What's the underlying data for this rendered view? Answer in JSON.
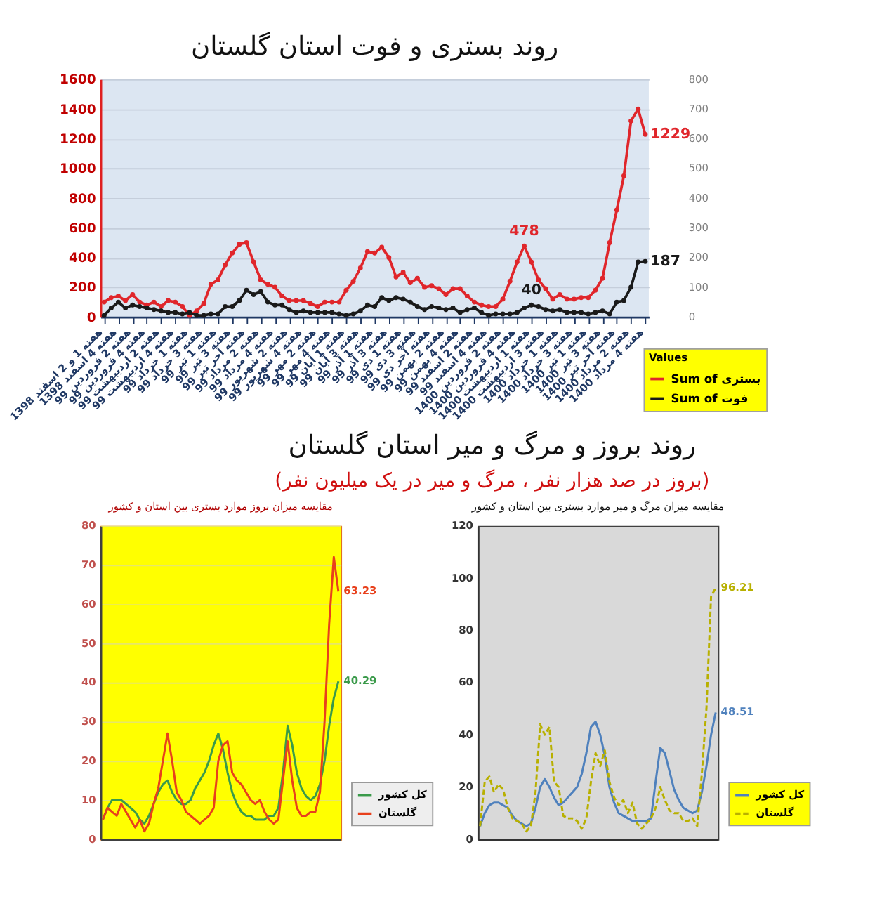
{
  "chart_data": [
    {
      "type": "line",
      "title": "روند بستری و فوت استان گلستان",
      "categories": [
        "هفته 1 و 2 اسفند 1398",
        null,
        "هفته 4 اسفند 1398",
        null,
        "هفته 2 فروردین 99",
        null,
        "هفته 4 فروردین 99",
        null,
        "هفته 2 اردیبهشت 99",
        null,
        "هفته 4 اردیبهشت 99",
        null,
        "هفته 1 خرداد 99",
        null,
        "هفته 3 خرداد 99",
        null,
        "هفته 1 تیر 99",
        null,
        "هفته 3 تیر 99",
        null,
        "هفته آخر تیر 99",
        null,
        "هفته 2 مرداد 99",
        null,
        "هفته 4 مرداد 99",
        null,
        "هفته 2 شهریور 99",
        null,
        "هفته 4 شهریور 99",
        null,
        "هفته 2 مهر 99",
        null,
        "هفته 4 مهر 99",
        null,
        "هفته 1 آبان 99",
        null,
        "هفته 3 آبان 99",
        null,
        "هفته 1 آذر 99",
        null,
        "هفته 3 آذر 99",
        null,
        "هفته 1 دی 99",
        null,
        "هفته 3 دی 99",
        null,
        "هفته آخر دی 99",
        null,
        "هفته 2 بهمن 99",
        null,
        "هفته 4 بهمن 99",
        null,
        "هفته 2 اسفند 99",
        null,
        "هفته 4 اسفند 99",
        null,
        "هفته 2 فروردین 1400",
        null,
        "هفته 4 فروردین 1400",
        null,
        "هفته 1 اردیبهشت 1400",
        null,
        "هفته 3 اردیبهشت 1400",
        null,
        "هفته 1 خرداد 1400",
        null,
        "هفته 3 خرداد 1400",
        null,
        "هفته 1 تیر 1400",
        null,
        "هفته 3 تیر 1400",
        null,
        "هفته آخر تیر 1400",
        null,
        "هفته 2 مرداد 1400",
        null,
        "هفته 4 مرداد 1400"
      ],
      "series": [
        {
          "name": "Sum of بستری",
          "color": "#e0262b",
          "values": [
            100,
            130,
            140,
            110,
            150,
            100,
            80,
            100,
            70,
            110,
            100,
            70,
            10,
            40,
            90,
            220,
            250,
            350,
            430,
            490,
            500,
            370,
            250,
            220,
            200,
            140,
            110,
            110,
            110,
            90,
            70,
            100,
            100,
            100,
            180,
            240,
            330,
            440,
            430,
            470,
            400,
            270,
            300,
            230,
            260,
            200,
            210,
            190,
            150,
            190,
            190,
            140,
            100,
            80,
            70,
            70,
            120,
            240,
            370,
            478,
            370,
            250,
            190,
            120,
            150,
            120,
            120,
            130,
            130,
            180,
            260,
            500,
            720,
            950,
            1320,
            1400,
            1229
          ],
          "value_labels": [
            null,
            null,
            null,
            null,
            null,
            null,
            null,
            null,
            null,
            null,
            null,
            null,
            null,
            null,
            null,
            null,
            null,
            null,
            null,
            null,
            null,
            null,
            null,
            null,
            null,
            null,
            null,
            null,
            null,
            null,
            null,
            null,
            null,
            null,
            null,
            null,
            null,
            null,
            null,
            null,
            null,
            null,
            null,
            null,
            null,
            null,
            null,
            null,
            null,
            null,
            null,
            null,
            null,
            null,
            null,
            null,
            null,
            null,
            null,
            "478",
            null,
            null,
            null,
            null,
            null,
            null,
            null,
            null,
            null,
            null,
            null,
            null,
            null,
            null,
            null,
            null,
            "1229"
          ]
        },
        {
          "name": "Sum of فوت",
          "color": "#1a1a1a",
          "axis": "y2",
          "values": [
            5,
            30,
            50,
            30,
            40,
            35,
            30,
            25,
            20,
            15,
            15,
            10,
            15,
            5,
            5,
            10,
            10,
            35,
            35,
            55,
            90,
            75,
            85,
            50,
            40,
            40,
            25,
            15,
            20,
            15,
            15,
            15,
            15,
            10,
            5,
            10,
            20,
            40,
            35,
            65,
            55,
            65,
            60,
            50,
            35,
            25,
            35,
            30,
            25,
            30,
            15,
            25,
            30,
            15,
            5,
            10,
            10,
            10,
            15,
            30,
            40,
            35,
            25,
            20,
            25,
            15,
            15,
            15,
            10,
            15,
            20,
            10,
            50,
            55,
            100,
            185,
            187
          ],
          "value_labels": [
            null,
            null,
            null,
            null,
            null,
            null,
            null,
            null,
            null,
            null,
            null,
            null,
            null,
            null,
            null,
            null,
            null,
            null,
            null,
            null,
            null,
            null,
            null,
            null,
            null,
            null,
            null,
            null,
            null,
            null,
            null,
            null,
            null,
            null,
            null,
            null,
            null,
            null,
            null,
            null,
            null,
            null,
            null,
            null,
            null,
            null,
            null,
            null,
            null,
            null,
            null,
            null,
            null,
            null,
            null,
            null,
            null,
            null,
            null,
            null,
            "40",
            null,
            null,
            null,
            null,
            null,
            null,
            null,
            null,
            null,
            null,
            null,
            null,
            null,
            null,
            null,
            "187"
          ]
        }
      ],
      "ylim": [
        0,
        1600
      ],
      "yticks": [
        0,
        200,
        400,
        600,
        800,
        1000,
        1200,
        1400,
        1600
      ],
      "y2lim": [
        0,
        800
      ],
      "y2ticks": [
        0,
        100,
        200,
        300,
        400,
        500,
        600,
        700,
        800
      ],
      "grid": "y",
      "legend": "bottom right",
      "legend_title": "Values",
      "marker": "circle"
    },
    {
      "type": "other",
      "title": "روند بروز و مرگ و میر استان گلستان",
      "subtitle": "(بروز در صد هزار نفر ، مرگ و میر در یک میلیون نفر)"
    },
    {
      "type": "line",
      "title": "مقایسه میزان بروز موارد بستری بین استان و کشور",
      "categories": [
        null,
        null,
        null,
        null,
        null,
        null,
        null,
        null,
        null,
        null,
        null,
        null,
        null,
        null,
        null,
        null,
        null,
        null,
        null,
        null,
        null,
        null,
        null,
        null,
        null,
        null,
        null,
        null,
        null,
        null,
        null,
        null,
        null,
        null,
        null,
        null,
        null,
        null,
        null,
        null,
        null,
        null,
        null,
        null,
        null,
        null,
        null,
        null,
        null,
        null,
        null,
        null
      ],
      "series": [
        {
          "name": "کل کشور",
          "color": "#3a9a4a",
          "values": [
            5,
            8,
            10,
            10,
            10,
            9,
            8,
            7,
            5,
            4,
            6,
            9,
            12,
            14,
            15,
            12,
            10,
            9,
            9,
            10,
            13,
            15,
            17,
            20,
            24,
            27,
            23,
            17,
            12,
            9,
            7,
            6,
            6,
            5,
            5,
            5,
            6,
            6,
            8,
            17,
            29,
            24,
            17,
            13,
            11,
            10,
            11,
            14,
            20,
            29,
            36,
            40.29
          ],
          "value_labels": [
            null,
            null,
            null,
            null,
            null,
            null,
            null,
            null,
            null,
            null,
            null,
            null,
            null,
            null,
            null,
            null,
            null,
            null,
            null,
            null,
            null,
            null,
            null,
            null,
            null,
            null,
            null,
            null,
            null,
            null,
            null,
            null,
            null,
            null,
            null,
            null,
            null,
            null,
            null,
            null,
            null,
            null,
            null,
            null,
            null,
            null,
            null,
            null,
            null,
            null,
            null,
            "40.29"
          ]
        },
        {
          "name": "گلستان",
          "color": "#e8401c",
          "values": [
            5,
            8,
            7,
            6,
            9,
            7,
            5,
            3,
            5,
            2,
            4,
            9,
            13,
            20,
            27,
            20,
            12,
            10,
            7,
            6,
            5,
            4,
            5,
            6,
            8,
            20,
            24,
            25,
            17,
            15,
            14,
            12,
            10,
            9,
            10,
            7,
            5,
            4,
            5,
            15,
            25,
            15,
            8,
            6,
            6,
            7,
            7,
            12,
            30,
            55,
            72,
            63.23
          ],
          "value_labels": [
            null,
            null,
            null,
            null,
            null,
            null,
            null,
            null,
            null,
            null,
            null,
            null,
            null,
            null,
            null,
            null,
            null,
            null,
            null,
            null,
            null,
            null,
            null,
            null,
            null,
            null,
            null,
            null,
            null,
            null,
            null,
            null,
            null,
            null,
            null,
            null,
            null,
            null,
            null,
            null,
            null,
            null,
            null,
            null,
            null,
            null,
            null,
            null,
            null,
            null,
            null,
            "63.23"
          ]
        }
      ],
      "ylim": [
        0,
        80
      ],
      "yticks": [
        0,
        10,
        20,
        30,
        40,
        50,
        60,
        70,
        80
      ],
      "grid": "y",
      "legend": "bottom right"
    },
    {
      "type": "line",
      "title": "مقایسه میزان مرگ و میر موارد بستری بین استان و کشور",
      "categories": [
        null,
        null,
        null,
        null,
        null,
        null,
        null,
        null,
        null,
        null,
        null,
        null,
        null,
        null,
        null,
        null,
        null,
        null,
        null,
        null,
        null,
        null,
        null,
        null,
        null,
        null,
        null,
        null,
        null,
        null,
        null,
        null,
        null,
        null,
        null,
        null,
        null,
        null,
        null,
        null,
        null,
        null,
        null,
        null,
        null,
        null,
        null,
        null,
        null,
        null,
        null,
        null
      ],
      "series": [
        {
          "name": "کل کشور",
          "color": "#4f81bd",
          "values": [
            5,
            10,
            13,
            14,
            14,
            13,
            12,
            9,
            7,
            6,
            5,
            6,
            12,
            20,
            23,
            20,
            16,
            13,
            14,
            16,
            18,
            20,
            25,
            33,
            43,
            45,
            40,
            32,
            20,
            14,
            10,
            9,
            8,
            7,
            7,
            7,
            7,
            8,
            22,
            35,
            33,
            26,
            19,
            15,
            12,
            11,
            10,
            11,
            18,
            28,
            40,
            48.51
          ],
          "value_labels": [
            null,
            null,
            null,
            null,
            null,
            null,
            null,
            null,
            null,
            null,
            null,
            null,
            null,
            null,
            null,
            null,
            null,
            null,
            null,
            null,
            null,
            null,
            null,
            null,
            null,
            null,
            null,
            null,
            null,
            null,
            null,
            null,
            null,
            null,
            null,
            null,
            null,
            null,
            null,
            null,
            null,
            null,
            null,
            null,
            null,
            null,
            null,
            null,
            null,
            null,
            null,
            "48.51"
          ]
        },
        {
          "name": "گلستان",
          "color": "#b8b000",
          "line_style": "dashed",
          "values": [
            5,
            22,
            24,
            18,
            21,
            19,
            12,
            8,
            7,
            6,
            3,
            5,
            18,
            44,
            40,
            43,
            22,
            20,
            9,
            8,
            8,
            7,
            4,
            8,
            22,
            33,
            28,
            34,
            22,
            16,
            13,
            15,
            10,
            14,
            6,
            4,
            6,
            8,
            12,
            20,
            15,
            11,
            10,
            10,
            7,
            7,
            8,
            5,
            25,
            50,
            93,
            96.21
          ],
          "value_labels": [
            null,
            null,
            null,
            null,
            null,
            null,
            null,
            null,
            null,
            null,
            null,
            null,
            null,
            null,
            null,
            null,
            null,
            null,
            null,
            null,
            null,
            null,
            null,
            null,
            null,
            null,
            null,
            null,
            null,
            null,
            null,
            null,
            null,
            null,
            null,
            null,
            null,
            null,
            null,
            null,
            null,
            null,
            null,
            null,
            null,
            null,
            null,
            null,
            null,
            null,
            null,
            "96.21"
          ]
        }
      ],
      "ylim": [
        0,
        120
      ],
      "yticks": [
        0,
        20,
        40,
        60,
        80,
        100,
        120
      ],
      "legend": "bottom right"
    }
  ]
}
